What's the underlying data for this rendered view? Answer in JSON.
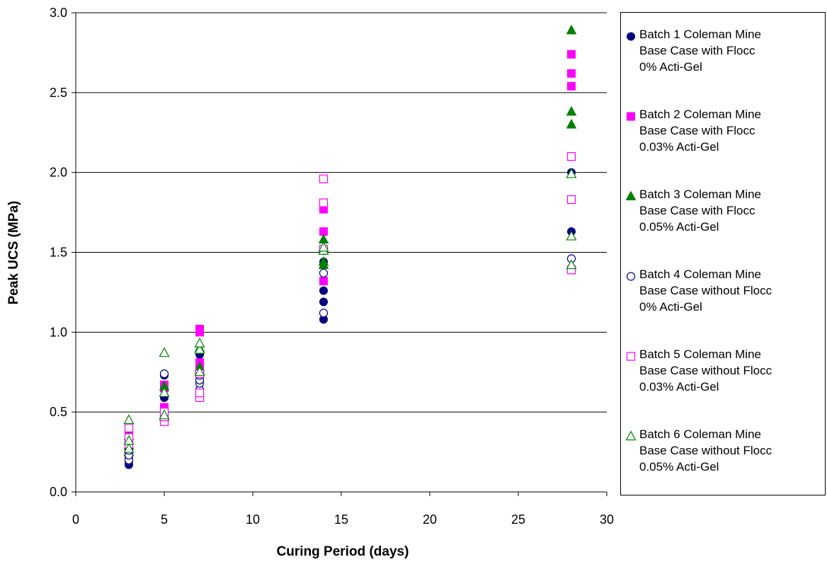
{
  "chart_data": {
    "type": "scatter",
    "title": "",
    "xlabel": "Curing Period (days)",
    "ylabel": "Peak UCS (MPa)",
    "xlim": [
      0,
      30
    ],
    "ylim": [
      0,
      3.0
    ],
    "x_ticks": [
      "0",
      "5",
      "10",
      "15",
      "20",
      "25",
      "30"
    ],
    "y_ticks": [
      "0.0",
      "0.5",
      "1.0",
      "1.5",
      "2.0",
      "2.5",
      "3.0"
    ],
    "grid": "horizontal",
    "legend_position": "right",
    "series": [
      {
        "name_lines": [
          "Batch 1  Coleman Mine",
          "Base Case with Flocc",
          "0% Acti-Gel"
        ],
        "marker": "circle-filled",
        "color": "#000080",
        "points": [
          [
            3,
            0.17
          ],
          [
            3,
            0.19
          ],
          [
            3,
            0.22
          ],
          [
            3,
            0.24
          ],
          [
            5,
            0.47
          ],
          [
            5,
            0.59
          ],
          [
            5,
            0.67
          ],
          [
            5,
            0.73
          ],
          [
            7,
            0.63
          ],
          [
            7,
            0.7
          ],
          [
            7,
            0.76
          ],
          [
            7,
            0.86
          ],
          [
            14,
            1.08
          ],
          [
            14,
            1.19
          ],
          [
            14,
            1.26
          ],
          [
            14,
            1.44
          ],
          [
            28,
            1.63
          ],
          [
            28,
            1.83
          ],
          [
            28,
            2.0
          ]
        ]
      },
      {
        "name_lines": [
          "Batch 2  Coleman Mine",
          "Base Case with Flocc",
          "0.03% Acti-Gel"
        ],
        "marker": "square-filled",
        "color": "#ff00ff",
        "points": [
          [
            3,
            0.27
          ],
          [
            3,
            0.33
          ],
          [
            3,
            0.38
          ],
          [
            5,
            0.5
          ],
          [
            5,
            0.53
          ],
          [
            5,
            0.65
          ],
          [
            5,
            0.67
          ],
          [
            7,
            0.78
          ],
          [
            7,
            0.81
          ],
          [
            7,
            1.0
          ],
          [
            7,
            1.02
          ],
          [
            14,
            1.32
          ],
          [
            14,
            1.52
          ],
          [
            14,
            1.63
          ],
          [
            14,
            1.77
          ],
          [
            28,
            1.83
          ],
          [
            28,
            2.54
          ],
          [
            28,
            2.62
          ],
          [
            28,
            2.74
          ]
        ]
      },
      {
        "name_lines": [
          "Batch 3 Coleman Mine",
          "Base Case with Flocc",
          "0.05% Acti-Gel"
        ],
        "marker": "triangle-filled",
        "color": "#008000",
        "points": [
          [
            3,
            0.25
          ],
          [
            3,
            0.29
          ],
          [
            3,
            0.35
          ],
          [
            5,
            0.47
          ],
          [
            5,
            0.66
          ],
          [
            7,
            0.76
          ],
          [
            7,
            0.78
          ],
          [
            7,
            0.9
          ],
          [
            14,
            1.42
          ],
          [
            14,
            1.44
          ],
          [
            14,
            1.53
          ],
          [
            14,
            1.58
          ],
          [
            28,
            2.3
          ],
          [
            28,
            2.38
          ],
          [
            28,
            2.89
          ]
        ]
      },
      {
        "name_lines": [
          "Batch 4  Coleman Mine",
          "Base Case without Flocc",
          "0% Acti-Gel"
        ],
        "marker": "circle-open",
        "color": "#000080",
        "points": [
          [
            3,
            0.2
          ],
          [
            3,
            0.23
          ],
          [
            3,
            0.26
          ],
          [
            5,
            0.46
          ],
          [
            5,
            0.49
          ],
          [
            5,
            0.74
          ],
          [
            7,
            0.64
          ],
          [
            7,
            0.68
          ],
          [
            7,
            0.7
          ],
          [
            7,
            0.73
          ],
          [
            14,
            1.12
          ],
          [
            14,
            1.37
          ],
          [
            14,
            1.51
          ],
          [
            28,
            1.39
          ],
          [
            28,
            1.46
          ]
        ]
      },
      {
        "name_lines": [
          "Batch 5  Coleman Mine",
          "Base Case without Flocc",
          "0.03% Acti-Gel"
        ],
        "marker": "square-open",
        "color": "#ff00ff",
        "points": [
          [
            3,
            0.3
          ],
          [
            3,
            0.34
          ],
          [
            3,
            0.4
          ],
          [
            5,
            0.44
          ],
          [
            5,
            0.47
          ],
          [
            5,
            0.5
          ],
          [
            7,
            0.59
          ],
          [
            7,
            0.62
          ],
          [
            7,
            0.74
          ],
          [
            14,
            1.52
          ],
          [
            14,
            1.81
          ],
          [
            14,
            1.96
          ],
          [
            28,
            1.39
          ],
          [
            28,
            1.83
          ],
          [
            28,
            2.1
          ]
        ]
      },
      {
        "name_lines": [
          "Batch 6  Coleman Mine",
          "Base Case without Flocc",
          "0.05% Acti-Gel"
        ],
        "marker": "triangle-open",
        "color": "#008000",
        "points": [
          [
            3,
            0.27
          ],
          [
            3,
            0.32
          ],
          [
            3,
            0.45
          ],
          [
            5,
            0.48
          ],
          [
            5,
            0.62
          ],
          [
            5,
            0.87
          ],
          [
            7,
            0.75
          ],
          [
            7,
            0.89
          ],
          [
            7,
            0.93
          ],
          [
            14,
            1.51
          ],
          [
            14,
            1.53
          ],
          [
            28,
            1.42
          ],
          [
            28,
            1.6
          ],
          [
            28,
            1.99
          ]
        ]
      }
    ]
  }
}
